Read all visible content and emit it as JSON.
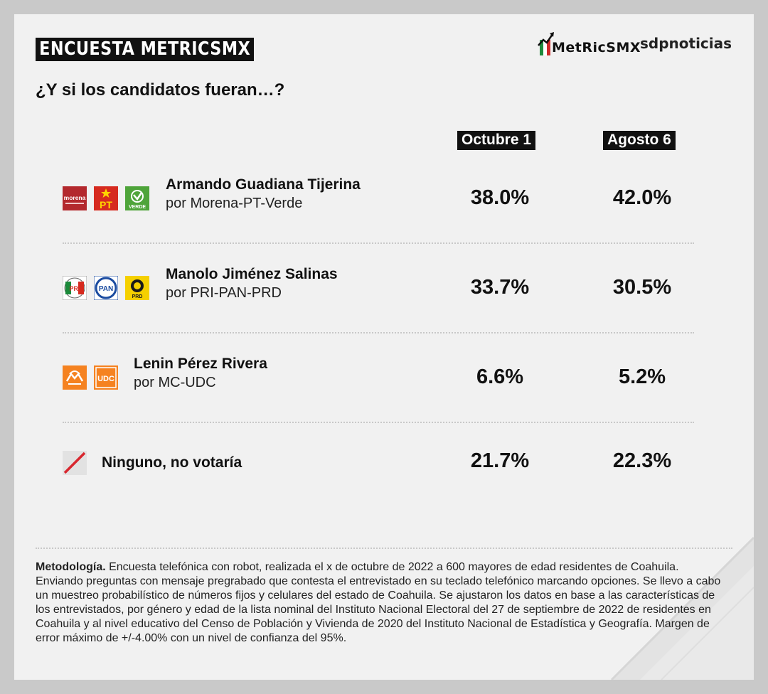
{
  "header": {
    "title": "ENCUESTA METRICSMX",
    "logo_metrics": "metricsmx",
    "logo_sdp": "sdpnoticias"
  },
  "subtitle": "¿Y si los candidatos fueran…?",
  "columns": {
    "oct": "Octubre 1",
    "ago": "Agosto 6"
  },
  "rows": [
    {
      "name": "Armando Guadiana Tijerina",
      "party": "por Morena-PT-Verde",
      "oct": "38.0%",
      "ago": "42.0%",
      "logos": [
        {
          "icon": "morena-logo",
          "text": "morena",
          "color": "#b3282d"
        },
        {
          "icon": "pt-logo",
          "text": "PT",
          "color": "#d62a1f"
        },
        {
          "icon": "verde-logo",
          "text": "VERDE",
          "color": "#4ea43a"
        }
      ]
    },
    {
      "name": "Manolo Jiménez Salinas",
      "party": "por PRI-PAN-PRD",
      "oct": "33.7%",
      "ago": "30.5%",
      "logos": [
        {
          "icon": "pri-logo",
          "text": "PRI",
          "color": "#1a8a3a"
        },
        {
          "icon": "pan-logo",
          "text": "PAN",
          "color": "#1a4ba0"
        },
        {
          "icon": "prd-logo",
          "text": "PRD",
          "color": "#f5d000"
        }
      ]
    },
    {
      "name": "Lenin Pérez Rivera",
      "party": "por MC-UDC",
      "oct": "6.6%",
      "ago": "5.2%",
      "logos": [
        {
          "icon": "mc-logo",
          "text": "",
          "color": "#f58220"
        },
        {
          "icon": "udc-logo",
          "text": "UDC",
          "color": "#f58220"
        }
      ]
    },
    {
      "name": "Ninguno, no votaría",
      "party": "",
      "oct": "21.7%",
      "ago": "22.3%",
      "logos": [
        {
          "icon": "slash-icon",
          "text": "",
          "color": "#d8262e"
        }
      ]
    }
  ],
  "methodology": {
    "label": "Metodología.",
    "text": " Encuesta telefónica con robot, realizada el x de octubre de 2022 a 600 mayores de edad residentes de Coahuila. Enviando preguntas con mensaje pregrabado que contesta el entrevistado en su teclado telefónico marcando opciones. Se llevo a cabo un muestreo probabilístico de números fijos y celulares del estado de Coahuila. Se ajustaron los datos en base a las características de los entrevistados, por género y edad de la lista nominal del Instituto Nacional Electoral del 27 de septiembre de 2022 de residentes en Coahuila y al nivel educativo del Censo de Población y Vivienda de 2020 del Instituto Nacional de Estadística y Geografía. Margen de error máximo de +/-4.00% con un nivel de confianza del 95%."
  },
  "colors": {
    "background": "#c9c9c9",
    "card": "#f1f1f1",
    "label_bg": "#111111",
    "flag_green": "#1e8a3c",
    "flag_red": "#cf2a2a"
  }
}
